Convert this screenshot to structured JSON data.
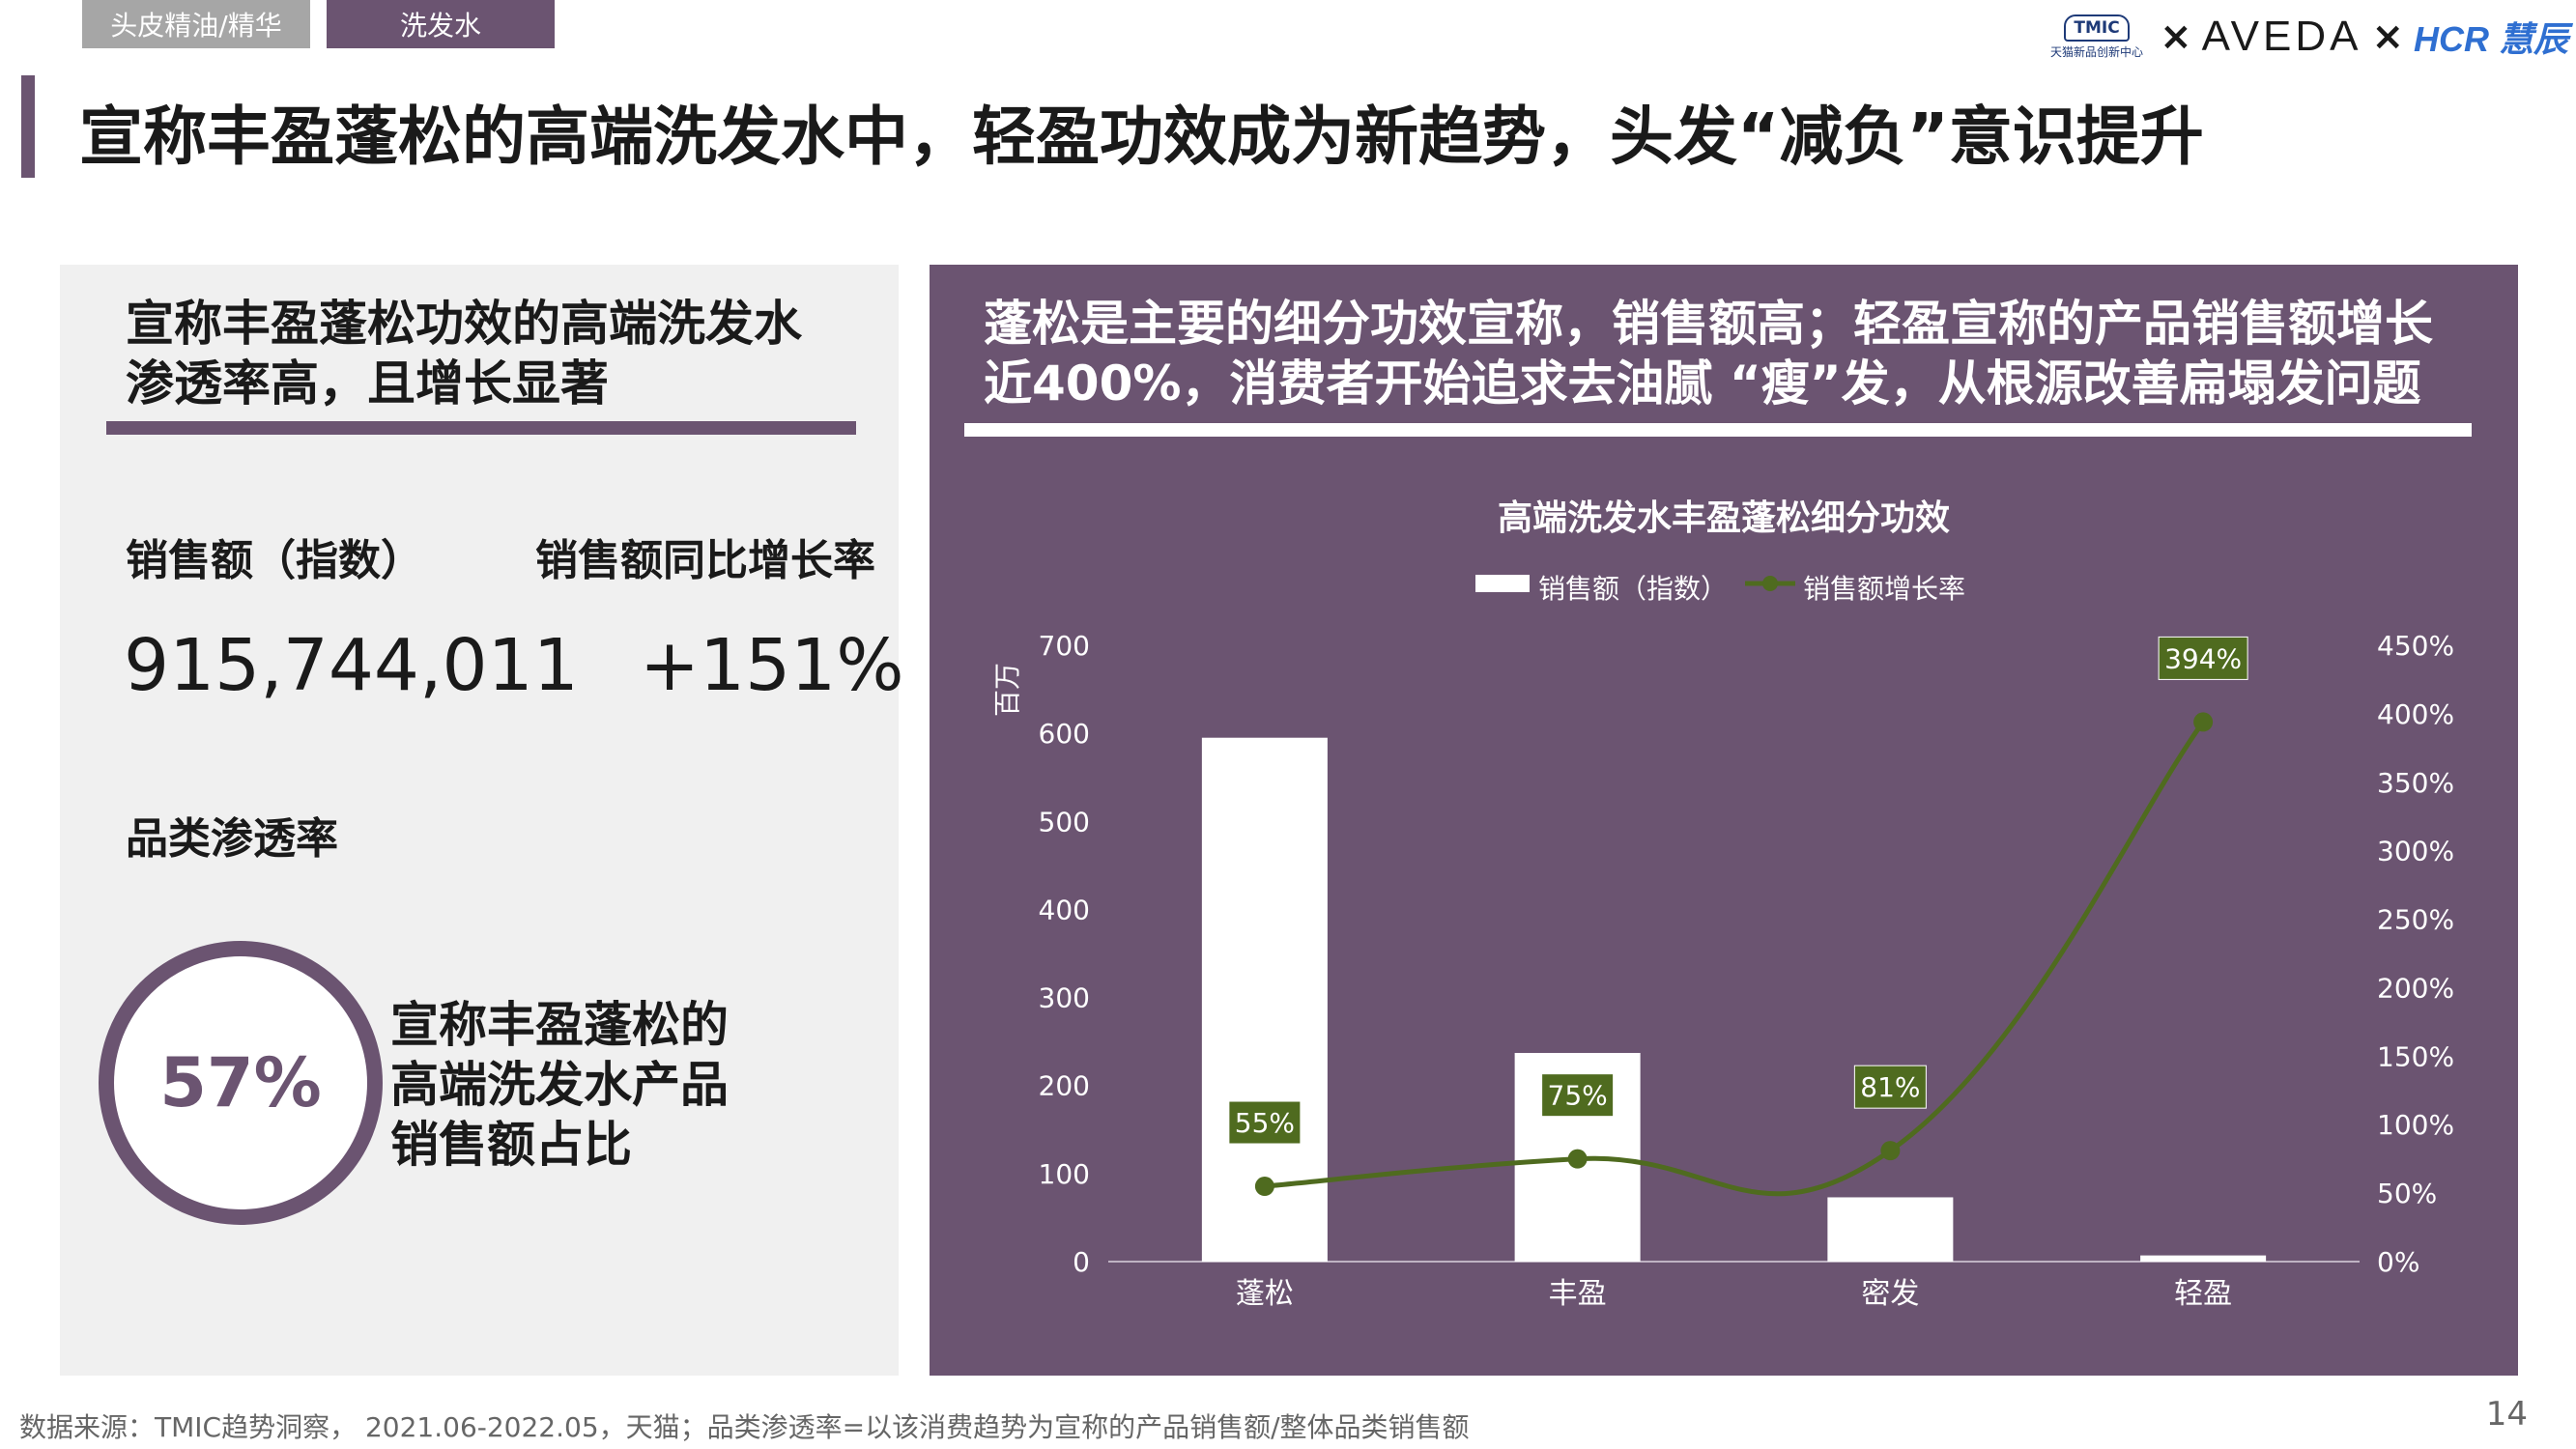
{
  "tabs": [
    "头皮精油/精华",
    "洗发水"
  ],
  "logos": {
    "tmic_badge": "TMIC",
    "tmic_sub": "天猫新品创新中心",
    "aveda": "AVEDA",
    "hcr": "HCR 慧辰",
    "times": "×"
  },
  "page_title": "宣称丰盈蓬松的高端洗发水中，轻盈功效成为新趋势，头发“减负”意识提升",
  "left": {
    "heading_line1": "宣称丰盈蓬松功效的高端洗发水",
    "heading_line2": "渗透率高，且增长显著",
    "sales_label": "销售额（指数）",
    "sales_value": "915,744,011",
    "growth_label": "销售额同比增长率",
    "growth_value": "+151%",
    "penetration_label": "品类渗透率",
    "penetration_value": "57%",
    "caption_line1": "宣称丰盈蓬松的",
    "caption_line2": "高端洗发水产品",
    "caption_line3": "销售额占比"
  },
  "right": {
    "heading_line1": "蓬松是主要的细分功效宣称，销售额高；轻盈宣称的产品销售额增长",
    "heading_line2": "近400%，消费者开始追求去油腻 “瘦”发，从根源改善扁塌发问题"
  },
  "chart_data": {
    "type": "bar",
    "title": "高端洗发水丰盈蓬松细分功效",
    "categories": [
      "蓬松",
      "丰盈",
      "密发",
      "轻盈"
    ],
    "series": [
      {
        "name": "销售额（指数）",
        "type": "bar",
        "axis": "left",
        "values": [
          595,
          237,
          73,
          7
        ]
      },
      {
        "name": "销售额增长率",
        "type": "line",
        "axis": "right",
        "values": [
          55,
          75,
          81,
          394
        ],
        "labels": [
          "55%",
          "75%",
          "81%",
          "394%"
        ]
      }
    ],
    "ylabel": "百万",
    "ylim": [
      0,
      700
    ],
    "yticks": [
      "0",
      "100",
      "200",
      "300",
      "400",
      "500",
      "600",
      "700"
    ],
    "y2lim": [
      0,
      450
    ],
    "y2ticks": [
      "0%",
      "50%",
      "100%",
      "150%",
      "200%",
      "250%",
      "300%",
      "350%",
      "400%",
      "450%"
    ],
    "legend_position": "top-center",
    "grid": false,
    "colors": {
      "bar": "#ffffff",
      "line": "#4f6b1f",
      "label_bg": "#4f6b1f",
      "text": "#ffffff"
    }
  },
  "footnote": "数据来源：TMIC趋势洞察， 2021.06-2022.05，天猫；品类渗透率=以该消费趋势为宣称的产品销售额/整体品类销售额",
  "page_number": "14"
}
